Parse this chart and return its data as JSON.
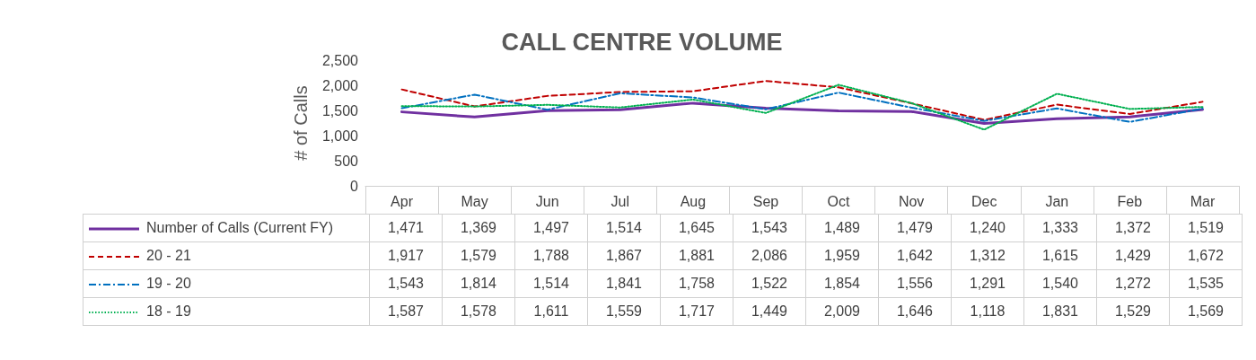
{
  "chart_data": {
    "type": "line",
    "title": "CALL CENTRE VOLUME",
    "ylabel": "# of Calls",
    "categories": [
      "Apr",
      "May",
      "Jun",
      "Jul",
      "Aug",
      "Sep",
      "Oct",
      "Nov",
      "Dec",
      "Jan",
      "Feb",
      "Mar"
    ],
    "series": [
      {
        "name": "Number of Calls (Current FY)",
        "color": "#7030a0",
        "line_style": "solid",
        "values": [
          1471,
          1369,
          1497,
          1514,
          1645,
          1543,
          1489,
          1479,
          1240,
          1333,
          1372,
          1519
        ],
        "value_labels": [
          "1,471",
          "1,369",
          "1,497",
          "1,514",
          "1,645",
          "1,543",
          "1,489",
          "1,479",
          "1,240",
          "1,333",
          "1,372",
          "1,519"
        ]
      },
      {
        "name": "20 - 21",
        "color": "#c00000",
        "line_style": "dashed",
        "values": [
          1917,
          1579,
          1788,
          1867,
          1881,
          2086,
          1959,
          1642,
          1312,
          1615,
          1429,
          1672
        ],
        "value_labels": [
          "1,917",
          "1,579",
          "1,788",
          "1,867",
          "1,881",
          "2,086",
          "1,959",
          "1,642",
          "1,312",
          "1,615",
          "1,429",
          "1,672"
        ]
      },
      {
        "name": "19 - 20",
        "color": "#0070c0",
        "line_style": "dashdot",
        "values": [
          1543,
          1814,
          1514,
          1841,
          1758,
          1522,
          1854,
          1556,
          1291,
          1540,
          1272,
          1535
        ],
        "value_labels": [
          "1,543",
          "1,814",
          "1,514",
          "1,841",
          "1,758",
          "1,522",
          "1,854",
          "1,556",
          "1,291",
          "1,540",
          "1,272",
          "1,535"
        ]
      },
      {
        "name": "18 - 19",
        "color": "#00b050",
        "line_style": "dotted",
        "values": [
          1587,
          1578,
          1611,
          1559,
          1717,
          1449,
          2009,
          1646,
          1118,
          1831,
          1529,
          1569
        ],
        "value_labels": [
          "1,587",
          "1,578",
          "1,611",
          "1,559",
          "1,717",
          "1,449",
          "2,009",
          "1,646",
          "1,118",
          "1,831",
          "1,529",
          "1,569"
        ]
      }
    ],
    "ylim": [
      0,
      2500
    ],
    "yticks": [
      0,
      500,
      {
        "value": 1000,
        "label": "1,000"
      },
      {
        "value": 1500,
        "label": "1,500"
      },
      {
        "value": 2000,
        "label": "2,000"
      },
      {
        "value": 2500,
        "label": "2,500"
      }
    ],
    "grid": false,
    "marker": "none",
    "legend": "bottom"
  }
}
